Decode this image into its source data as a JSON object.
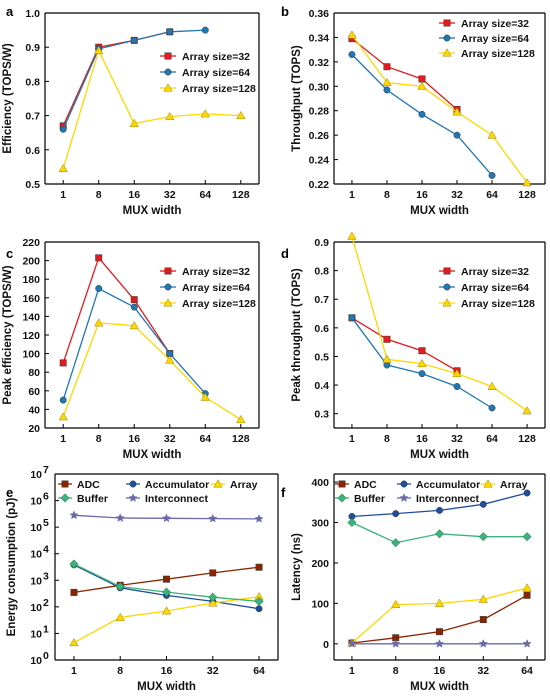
{
  "chart_data": [
    {
      "panel": "a",
      "type": "line",
      "xlabel": "MUX width",
      "ylabel": "Efficiency (TOPS/W)",
      "x_categories": [
        "1",
        "8",
        "16",
        "32",
        "64",
        "128"
      ],
      "yscale": "linear",
      "ylim": [
        0.5,
        1.0
      ],
      "yticks": [
        "0.5",
        "0.6",
        "0.7",
        "0.8",
        "0.9",
        "1.0"
      ],
      "legend_position": "middle-right",
      "series": [
        {
          "name": "Array size=32",
          "color": "#e41a1c",
          "marker": "square",
          "values": [
            0.67,
            0.9,
            0.92,
            0.945,
            null,
            null
          ]
        },
        {
          "name": "Array size=64",
          "color": "#1f77b4",
          "marker": "circle",
          "values": [
            0.66,
            0.895,
            0.92,
            0.945,
            0.95,
            null
          ]
        },
        {
          "name": "Array size=128",
          "color": "#ffd700",
          "marker": "triangle",
          "values": [
            0.545,
            0.89,
            0.677,
            0.697,
            0.705,
            0.7
          ]
        }
      ]
    },
    {
      "panel": "b",
      "type": "line",
      "xlabel": "MUX width",
      "ylabel": "Throughput (TOPS)",
      "x_categories": [
        "1",
        "8",
        "16",
        "32",
        "64",
        "128"
      ],
      "yscale": "linear",
      "ylim": [
        0.22,
        0.36
      ],
      "yticks": [
        "0.22",
        "0.24",
        "0.26",
        "0.28",
        "0.30",
        "0.32",
        "0.34",
        "0.36"
      ],
      "legend_position": "top-right",
      "series": [
        {
          "name": "Array size=32",
          "color": "#e41a1c",
          "marker": "square",
          "values": [
            0.339,
            0.316,
            0.306,
            0.281,
            null,
            null
          ]
        },
        {
          "name": "Array size=64",
          "color": "#1f77b4",
          "marker": "circle",
          "values": [
            0.326,
            0.297,
            0.277,
            0.26,
            0.227,
            null
          ]
        },
        {
          "name": "Array size=128",
          "color": "#ffd700",
          "marker": "triangle",
          "values": [
            0.342,
            0.303,
            0.3,
            0.279,
            0.26,
            0.221
          ]
        }
      ]
    },
    {
      "panel": "c",
      "type": "line",
      "xlabel": "MUX width",
      "ylabel": "Peak efficiency (TOPS/W)",
      "x_categories": [
        "1",
        "8",
        "16",
        "32",
        "64",
        "128"
      ],
      "yscale": "linear",
      "ylim": [
        20,
        220
      ],
      "yticks": [
        "20",
        "40",
        "60",
        "80",
        "100",
        "120",
        "140",
        "160",
        "180",
        "200",
        "220"
      ],
      "legend_position": "top-right",
      "series": [
        {
          "name": "Array size=32",
          "color": "#e41a1c",
          "marker": "square",
          "values": [
            90,
            203,
            158,
            100,
            null,
            null
          ]
        },
        {
          "name": "Array size=64",
          "color": "#1f77b4",
          "marker": "circle",
          "values": [
            50,
            170,
            150,
            100,
            57,
            null
          ]
        },
        {
          "name": "Array size=128",
          "color": "#ffd700",
          "marker": "triangle",
          "values": [
            32,
            133,
            130,
            93,
            53,
            29
          ]
        }
      ]
    },
    {
      "panel": "d",
      "type": "line",
      "xlabel": "MUX width",
      "ylabel": "Peak throughput (TOPS)",
      "x_categories": [
        "1",
        "8",
        "16",
        "32",
        "64",
        "128"
      ],
      "yscale": "linear",
      "ylim": [
        0.25,
        0.9
      ],
      "yticks": [
        "0.3",
        "0.4",
        "0.5",
        "0.6",
        "0.7",
        "0.8",
        "0.9"
      ],
      "legend_position": "top-right",
      "series": [
        {
          "name": "Array size=32",
          "color": "#e41a1c",
          "marker": "square",
          "values": [
            0.635,
            0.56,
            0.52,
            0.45,
            null,
            null
          ]
        },
        {
          "name": "Array size=64",
          "color": "#1f77b4",
          "marker": "circle",
          "values": [
            0.635,
            0.47,
            0.44,
            0.395,
            0.32,
            null
          ]
        },
        {
          "name": "Array size=128",
          "color": "#ffd700",
          "marker": "triangle",
          "values": [
            0.92,
            0.49,
            0.475,
            0.44,
            0.395,
            0.31
          ]
        }
      ]
    },
    {
      "panel": "e",
      "type": "line",
      "xlabel": "MUX width",
      "ylabel": "Energy consumption (pJ)",
      "x_categories": [
        "1",
        "8",
        "16",
        "32",
        "64"
      ],
      "yscale": "log",
      "ylim": [
        1,
        10000000
      ],
      "yticks": [
        "10^0",
        "10^1",
        "10^2",
        "10^3",
        "10^4",
        "10^5",
        "10^6",
        "10^7"
      ],
      "legend_position": "top",
      "series": [
        {
          "name": "ADC",
          "color": "#8b2500",
          "marker": "square",
          "values": [
            350,
            650,
            1100,
            1900,
            3100
          ]
        },
        {
          "name": "Accumulator",
          "color": "#1f4e9c",
          "marker": "circle",
          "values": [
            3800,
            520,
            270,
            160,
            85
          ]
        },
        {
          "name": "Array",
          "color": "#ffd700",
          "marker": "triangle",
          "values": [
            4.5,
            40,
            70,
            140,
            240
          ]
        },
        {
          "name": "Buffer",
          "color": "#3cb37a",
          "marker": "diamond",
          "values": [
            4100,
            580,
            360,
            230,
            160
          ]
        },
        {
          "name": "Interconnect",
          "color": "#6a6aa8",
          "marker": "star",
          "values": [
            280000,
            220000,
            215000,
            210000,
            205000
          ]
        }
      ]
    },
    {
      "panel": "f",
      "type": "line",
      "xlabel": "MUX width",
      "ylabel": "Latency (ns)",
      "x_categories": [
        "1",
        "8",
        "16",
        "32",
        "64"
      ],
      "yscale": "linear",
      "ylim": [
        -40,
        420
      ],
      "yticks": [
        "0",
        "100",
        "200",
        "300",
        "400"
      ],
      "legend_position": "top",
      "series": [
        {
          "name": "ADC",
          "color": "#8b2500",
          "marker": "square",
          "values": [
            2,
            15,
            30,
            60,
            120
          ]
        },
        {
          "name": "Accumulator",
          "color": "#1f4e9c",
          "marker": "circle",
          "values": [
            315,
            322,
            330,
            345,
            373
          ]
        },
        {
          "name": "Array",
          "color": "#ffd700",
          "marker": "triangle",
          "values": [
            2,
            97,
            100,
            110,
            138
          ]
        },
        {
          "name": "Buffer",
          "color": "#3cb37a",
          "marker": "diamond",
          "values": [
            300,
            250,
            272,
            265,
            265
          ]
        },
        {
          "name": "Interconnect",
          "color": "#6a6aa8",
          "marker": "star",
          "values": [
            0,
            0,
            0,
            0,
            0
          ]
        }
      ]
    }
  ]
}
